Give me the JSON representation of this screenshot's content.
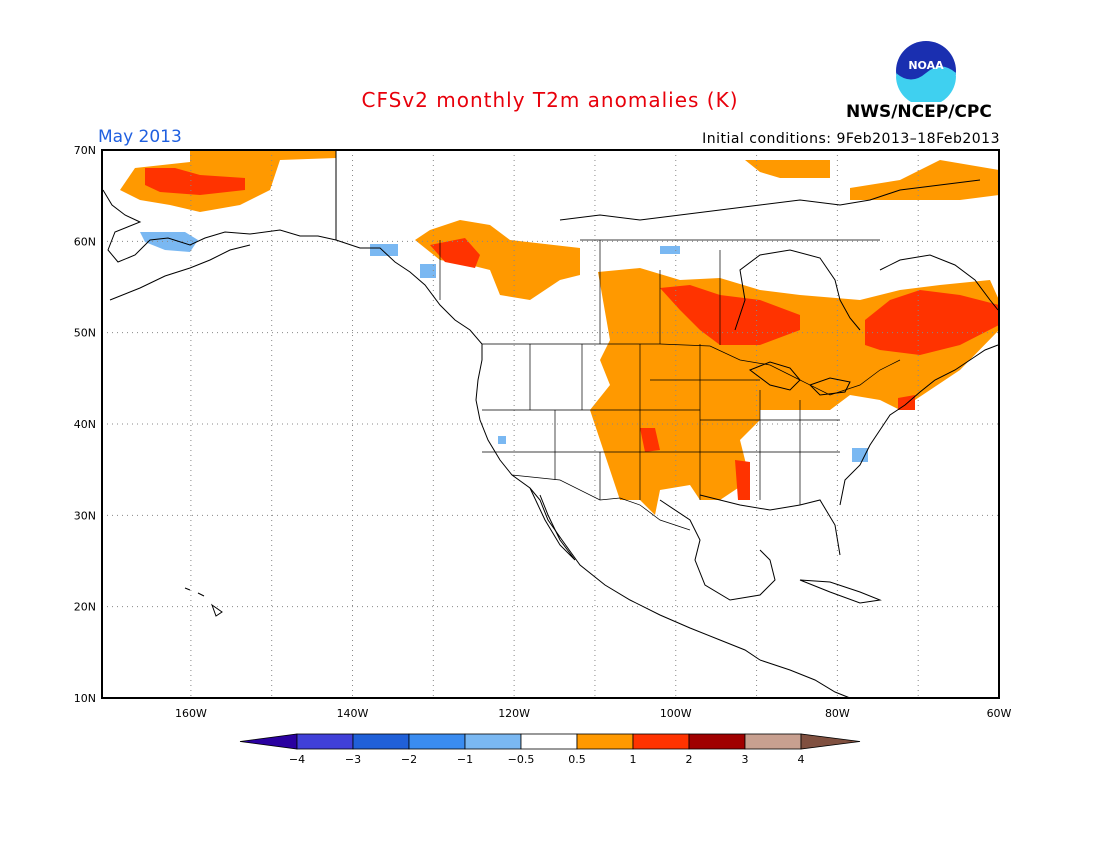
{
  "title": "CFSv2 monthly T2m anomalies (K)",
  "month_label": "May 2013",
  "init_conditions": "Initial conditions: 9Feb2013–18Feb2013",
  "agency": "NWS/NCEP/CPC",
  "logo_text": "NOAA",
  "colors": {
    "title": "#e8000b",
    "month": "#2060e0"
  },
  "lat_labels": [
    "70N",
    "60N",
    "50N",
    "40N",
    "30N",
    "20N",
    "10N"
  ],
  "lon_labels": [
    "160W",
    "140W",
    "120W",
    "100W",
    "80W",
    "60W"
  ],
  "colorbar": {
    "labels": [
      "−4",
      "−3",
      "−2",
      "−1",
      "−0.5",
      "0.5",
      "1",
      "2",
      "3",
      "4"
    ],
    "colors": [
      "#2a00a0",
      "#4040d8",
      "#2060d8",
      "#3a8cf0",
      "#7ab8f2",
      "#ffffff",
      "#ff9900",
      "#ff3300",
      "#a00000",
      "#c8a090",
      "#805040"
    ]
  }
}
